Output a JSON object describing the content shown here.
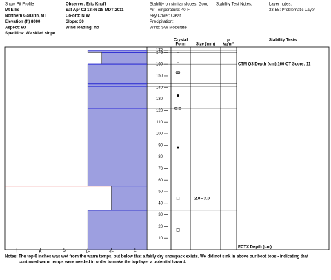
{
  "header": {
    "col1": [
      "Snow Pit Profile",
      "Mt Ellis",
      "Northern Gallatin, MT",
      "Elevation (ft)      8000",
      "Aspect:      90",
      "Specifics: We skied slope."
    ],
    "col2": [
      "Observer:  Eric Knoff",
      "Sat Apr 02 13:46:18 MDT 2011",
      "Co-ord:   N  W",
      "Slope:   30",
      "Wind loading:  no"
    ],
    "col3": [
      "Stability on similar slopes:  Good",
      "Air Temperature:   40 F",
      "Sky Cover:  Clear",
      "Precipitation:",
      "Wind:  SW Moderate"
    ],
    "col4": [
      "Stability Test Notes:"
    ],
    "col5": [
      "Layer notes:",
      "33-55: Problematic Layer"
    ]
  },
  "columns": {
    "crystal": "Crystal",
    "form": "Form",
    "size": "Size (mm)",
    "rho": "ρ",
    "rho_unit": "kg/m³",
    "stability": "Stability Tests"
  },
  "chart_data": {
    "type": "snow-profile",
    "ylim": [
      0,
      172
    ],
    "yticks": [
      172,
      170,
      160,
      150,
      140,
      130,
      120,
      110,
      100,
      90,
      80,
      70,
      60,
      50,
      40,
      30,
      20,
      10
    ],
    "hardness_lim": [
      0.5,
      6.5
    ],
    "hardness_ticks": [
      {
        "value": 6,
        "label": "I"
      },
      {
        "value": 5,
        "label": "K"
      },
      {
        "value": 4,
        "label": "P"
      },
      {
        "value": 3,
        "label": "1F"
      },
      {
        "value": 2,
        "label": "4F"
      },
      {
        "value": 1,
        "label": "F"
      }
    ],
    "color": "#9d9fe0",
    "boundary_color": "#2a2ad8",
    "weak_color": "#e01818",
    "layers": [
      {
        "top": 172,
        "bottom": 170,
        "hardness": 3
      },
      {
        "top": 170,
        "bottom": 160,
        "hardness": 2.4
      },
      {
        "top": 160,
        "bottom": 143,
        "hardness": 3
      },
      {
        "top": 143,
        "bottom": 141,
        "hardness": 3
      },
      {
        "top": 141,
        "bottom": 122,
        "hardness": 3
      },
      {
        "top": 122,
        "bottom": 55,
        "hardness": 3,
        "weak_bottom": true
      },
      {
        "top": 55,
        "bottom": 34,
        "hardness": 2
      },
      {
        "top": 34,
        "bottom": 0,
        "hardness": 3
      }
    ],
    "forms": [
      {
        "depth": 170,
        "symbol": "–"
      },
      {
        "depth": 162,
        "symbol": "○"
      },
      {
        "depth": 153,
        "symbol": "ꝏ"
      },
      {
        "depth": 133,
        "symbol": "●"
      },
      {
        "depth": 122,
        "symbol": "⊂⊃"
      },
      {
        "depth": 88,
        "symbol": "●"
      },
      {
        "depth": 44,
        "symbol": "□"
      },
      {
        "depth": 17,
        "symbol": "⊟"
      }
    ],
    "sizes": [
      {
        "depth": 44,
        "label": "2.0 - 3.0"
      }
    ],
    "tests": [
      {
        "depth": 160,
        "label": "CTM Q3 Depth (cm) 160 CT Score: 11"
      },
      {
        "depth": 0,
        "label": "ECTX  Depth (cm)"
      }
    ]
  },
  "notes": {
    "label": "Notes:",
    "lines": [
      "The top 6 inches was wet from the warm temps, but below that a fairly dry snowpack exists.  We did not sink in above our boot tops - indicating that",
      "continued warm temps were needed in order to make the top layer a potential hazard."
    ]
  }
}
